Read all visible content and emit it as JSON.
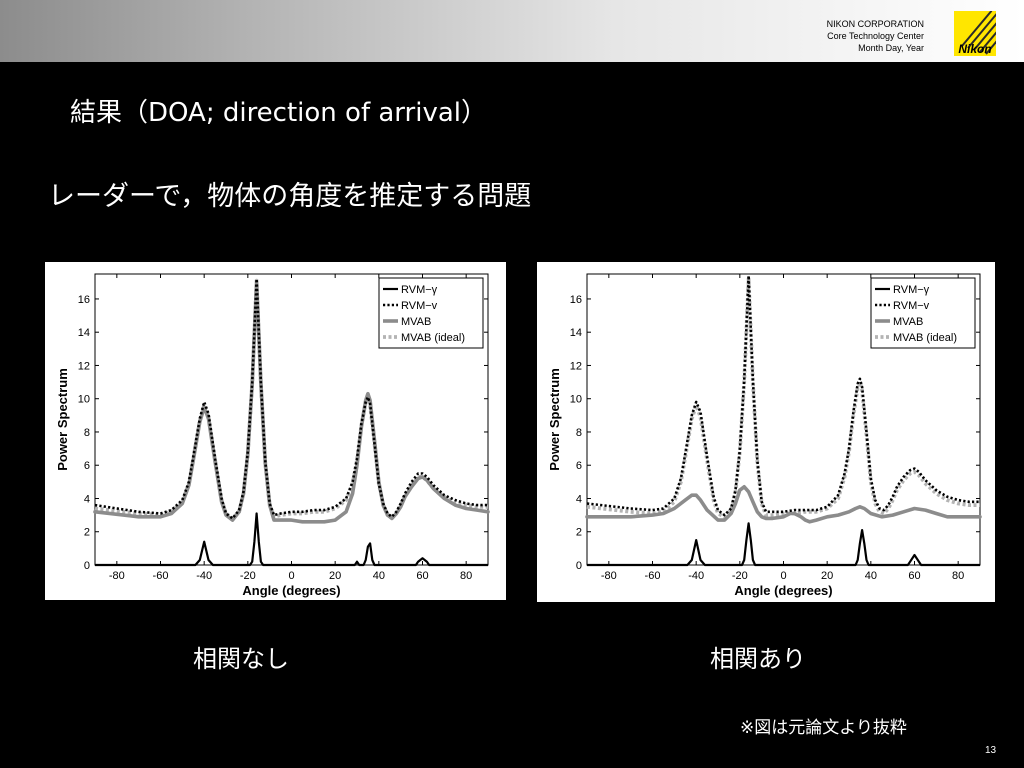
{
  "header": {
    "company_line1": "NIKON CORPORATION",
    "company_line2": "Core Technology Center",
    "company_line3": "Month Day, Year",
    "logo_text": "Nikon",
    "logo_color": "#ffe600"
  },
  "slide": {
    "title": "結果（DOA; direction of arrival）",
    "subtitle": "レーダーで，物体の角度を推定する問題",
    "note": "※図は元論文より抜粋",
    "page_number": "13"
  },
  "chart_data": [
    {
      "type": "line",
      "caption": "相関なし",
      "xlabel": "Angle (degrees)",
      "ylabel": "Power Spectrum",
      "xlim": [
        -90,
        90
      ],
      "ylim": [
        0,
        17.5
      ],
      "xticks": [
        -80,
        -60,
        -40,
        -20,
        0,
        20,
        40,
        60,
        80
      ],
      "yticks": [
        0,
        2,
        4,
        6,
        8,
        10,
        12,
        14,
        16
      ],
      "grid": false,
      "legend_position": "top-right",
      "series": [
        {
          "name": "RVM−γ",
          "color": "#000000",
          "style": "solid-thin",
          "x": [
            -90,
            -44,
            -42,
            -40,
            -38,
            -36,
            -19,
            -18,
            -17,
            -16,
            -15,
            -14,
            -13,
            29,
            30,
            31,
            33,
            34,
            35,
            36,
            37,
            38,
            39,
            57,
            58,
            60,
            62,
            63,
            90
          ],
          "y": [
            0,
            0,
            0.3,
            1.4,
            0.3,
            0,
            0,
            0.2,
            1.4,
            3.1,
            1.4,
            0.2,
            0,
            0,
            0.2,
            0,
            0,
            0.3,
            1.1,
            1.3,
            0.3,
            0,
            0,
            0,
            0.2,
            0.4,
            0.2,
            0,
            0
          ]
        },
        {
          "name": "RVM−v",
          "color": "#000000",
          "style": "dotted",
          "x": [
            -90,
            -70,
            -60,
            -55,
            -50,
            -47,
            -45,
            -42,
            -40,
            -38,
            -35,
            -32,
            -30,
            -27,
            -24,
            -22,
            -20,
            -18,
            -16,
            -14,
            -12,
            -10,
            -8,
            -5,
            0,
            5,
            10,
            15,
            20,
            25,
            28,
            30,
            32,
            34,
            35,
            36,
            38,
            40,
            42,
            44,
            46,
            48,
            50,
            52,
            55,
            58,
            60,
            62,
            65,
            70,
            75,
            80,
            85,
            90
          ],
          "y": [
            3.6,
            3.2,
            3.1,
            3.3,
            3.9,
            5,
            6.5,
            8.8,
            9.8,
            9.1,
            6.4,
            4,
            3.1,
            2.8,
            3.3,
            4.4,
            6.8,
            11,
            17.2,
            11,
            6.2,
            3.7,
            3,
            3.1,
            3.2,
            3.2,
            3.3,
            3.3,
            3.5,
            4,
            5,
            6.4,
            8.5,
            9.8,
            10.1,
            9.7,
            7.3,
            4.9,
            3.7,
            3.1,
            2.9,
            3.2,
            3.7,
            4.3,
            5,
            5.5,
            5.5,
            5.3,
            4.8,
            4.2,
            3.9,
            3.7,
            3.6,
            3.6
          ]
        },
        {
          "name": "MVAB",
          "color": "#8c8c8c",
          "style": "solid-thick",
          "x": [
            -90,
            -70,
            -60,
            -55,
            -50,
            -47,
            -45,
            -42,
            -40,
            -38,
            -35,
            -32,
            -30,
            -27,
            -24,
            -22,
            -20,
            -18,
            -16,
            -14,
            -12,
            -10,
            -8,
            -5,
            0,
            5,
            10,
            15,
            20,
            25,
            28,
            30,
            32,
            34,
            35,
            36,
            38,
            40,
            42,
            44,
            46,
            48,
            50,
            52,
            55,
            58,
            60,
            62,
            65,
            70,
            75,
            80,
            85,
            90
          ],
          "y": [
            3.2,
            2.9,
            2.9,
            3.1,
            3.7,
            4.8,
            6.3,
            8.6,
            9.5,
            8.8,
            6.2,
            3.8,
            3,
            2.7,
            3.2,
            4.3,
            6.7,
            10.9,
            17,
            10.9,
            6.1,
            3.6,
            2.7,
            2.7,
            2.7,
            2.6,
            2.6,
            2.6,
            2.7,
            3.2,
            4.3,
            6,
            8.3,
            9.9,
            10.3,
            9.9,
            7.5,
            5,
            3.6,
            3,
            2.8,
            3.1,
            3.5,
            4.1,
            4.7,
            5.2,
            5.3,
            5.1,
            4.6,
            4,
            3.6,
            3.4,
            3.3,
            3.2
          ]
        },
        {
          "name": "MVAB (ideal)",
          "color": "#b4b4b4",
          "style": "dotted-thick",
          "x": [
            -90,
            -70,
            -60,
            -55,
            -50,
            -47,
            -45,
            -42,
            -40,
            -38,
            -35,
            -32,
            -30,
            -27,
            -24,
            -22,
            -20,
            -18,
            -16,
            -14,
            -12,
            -10,
            -8,
            -5,
            0,
            5,
            10,
            15,
            20,
            25,
            28,
            30,
            32,
            34,
            35,
            36,
            38,
            40,
            42,
            44,
            46,
            48,
            50,
            52,
            55,
            58,
            60,
            62,
            65,
            70,
            75,
            80,
            85,
            90
          ],
          "y": [
            3.4,
            3.1,
            3,
            3.2,
            3.8,
            4.9,
            6.4,
            8.7,
            9.6,
            8.9,
            6.3,
            3.9,
            3.1,
            2.8,
            3.2,
            4.3,
            6.7,
            10.9,
            17.1,
            10.9,
            6.1,
            3.6,
            2.9,
            3,
            3.1,
            3.1,
            3.2,
            3.2,
            3.4,
            3.9,
            4.9,
            6.3,
            8.4,
            9.8,
            10.1,
            9.6,
            7.3,
            4.9,
            3.6,
            3,
            2.9,
            3.1,
            3.6,
            4.2,
            4.8,
            5.3,
            5.3,
            5.1,
            4.6,
            4.1,
            3.7,
            3.6,
            3.5,
            3.5
          ]
        }
      ]
    },
    {
      "type": "line",
      "caption": "相関あり",
      "xlabel": "Angle (degrees)",
      "ylabel": "Power Spectrum",
      "xlim": [
        -90,
        90
      ],
      "ylim": [
        0,
        17.5
      ],
      "xticks": [
        -80,
        -60,
        -40,
        -20,
        0,
        20,
        40,
        60,
        80
      ],
      "yticks": [
        0,
        2,
        4,
        6,
        8,
        10,
        12,
        14,
        16
      ],
      "grid": false,
      "legend_position": "top-right",
      "series": [
        {
          "name": "RVM−γ",
          "color": "#000000",
          "style": "solid-thin",
          "x": [
            -90,
            -44,
            -42,
            -40,
            -38,
            -36,
            -19,
            -18,
            -17,
            -16,
            -15,
            -14,
            -13,
            31,
            33,
            34,
            35,
            36,
            37,
            38,
            39,
            57,
            58,
            60,
            62,
            63,
            90
          ],
          "y": [
            0,
            0,
            0.3,
            1.5,
            0.3,
            0,
            0,
            0.3,
            1.5,
            2.5,
            1.5,
            0.3,
            0,
            0,
            0,
            0.3,
            1.3,
            2.1,
            1.3,
            0.3,
            0,
            0,
            0.2,
            0.6,
            0.2,
            0,
            0
          ]
        },
        {
          "name": "RVM−v",
          "color": "#000000",
          "style": "dotted",
          "x": [
            -90,
            -70,
            -60,
            -55,
            -50,
            -47,
            -45,
            -42,
            -40,
            -38,
            -35,
            -32,
            -30,
            -27,
            -24,
            -22,
            -20,
            -18,
            -16,
            -14,
            -12,
            -10,
            -8,
            -5,
            0,
            5,
            10,
            15,
            20,
            25,
            28,
            30,
            32,
            34,
            35,
            36,
            38,
            40,
            42,
            44,
            46,
            48,
            50,
            52,
            55,
            58,
            60,
            62,
            65,
            70,
            75,
            80,
            85,
            90
          ],
          "y": [
            3.7,
            3.4,
            3.3,
            3.4,
            4,
            5.2,
            6.7,
            9,
            9.8,
            9.2,
            6.5,
            4.1,
            3.3,
            3,
            3.4,
            4.5,
            6.9,
            11.1,
            17.4,
            11.1,
            6.3,
            3.8,
            3.2,
            3.2,
            3.2,
            3.3,
            3.3,
            3.3,
            3.5,
            4.2,
            5.5,
            7,
            9.2,
            10.9,
            11.2,
            10.7,
            8,
            5.2,
            3.9,
            3.4,
            3.3,
            3.6,
            4.1,
            4.7,
            5.3,
            5.7,
            5.8,
            5.6,
            5.1,
            4.5,
            4.1,
            3.9,
            3.8,
            3.8
          ]
        },
        {
          "name": "MVAB",
          "color": "#8c8c8c",
          "style": "solid-thick",
          "x": [
            -90,
            -70,
            -60,
            -55,
            -50,
            -45,
            -42,
            -40,
            -38,
            -35,
            -30,
            -27,
            -24,
            -22,
            -20,
            -18,
            -16,
            -14,
            -12,
            -10,
            -8,
            -5,
            0,
            3,
            5,
            8,
            10,
            12,
            15,
            20,
            25,
            30,
            33,
            35,
            37,
            40,
            45,
            50,
            55,
            60,
            65,
            70,
            75,
            80,
            85,
            90
          ],
          "y": [
            2.9,
            2.9,
            3,
            3.1,
            3.4,
            3.9,
            4.2,
            4.2,
            3.9,
            3.3,
            2.7,
            2.7,
            3.1,
            3.7,
            4.5,
            4.7,
            4.4,
            3.8,
            3.2,
            2.9,
            2.8,
            2.8,
            2.9,
            3.1,
            3.1,
            2.9,
            2.7,
            2.6,
            2.7,
            2.9,
            3,
            3.2,
            3.4,
            3.5,
            3.4,
            3.1,
            2.9,
            3,
            3.2,
            3.4,
            3.3,
            3.1,
            2.9,
            2.9,
            2.9,
            2.9
          ]
        },
        {
          "name": "MVAB (ideal)",
          "color": "#b4b4b4",
          "style": "dotted-thick",
          "x": [
            -90,
            -70,
            -60,
            -55,
            -50,
            -47,
            -45,
            -42,
            -40,
            -38,
            -35,
            -32,
            -30,
            -27,
            -24,
            -22,
            -20,
            -18,
            -16,
            -14,
            -12,
            -10,
            -8,
            -5,
            0,
            5,
            10,
            15,
            20,
            25,
            28,
            30,
            32,
            34,
            35,
            36,
            38,
            40,
            42,
            44,
            46,
            48,
            50,
            52,
            55,
            58,
            60,
            62,
            65,
            70,
            75,
            80,
            85,
            90
          ],
          "y": [
            3.5,
            3.2,
            3.1,
            3.2,
            3.8,
            5,
            6.5,
            8.8,
            9.6,
            8.9,
            6.3,
            3.9,
            3.1,
            2.9,
            3.3,
            4.4,
            6.8,
            11,
            17.2,
            11,
            6.2,
            3.7,
            3,
            3,
            3.1,
            3.1,
            3.2,
            3.2,
            3.4,
            4,
            5.3,
            6.8,
            9,
            10.7,
            11,
            10.5,
            7.8,
            5,
            3.7,
            3.2,
            3.1,
            3.4,
            3.9,
            4.5,
            5.1,
            5.5,
            5.6,
            5.4,
            4.9,
            4.3,
            3.9,
            3.7,
            3.6,
            3.6
          ]
        }
      ]
    }
  ]
}
